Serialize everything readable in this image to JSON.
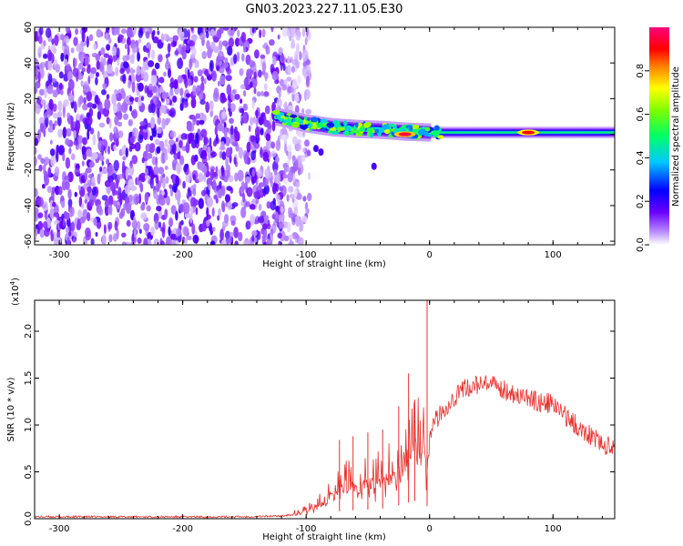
{
  "page_title": "GN03.2023.227.11.05.E30",
  "chart_data": [
    {
      "type": "heatmap",
      "title": "GN03.2023.227.11.05.E30",
      "xlabel": "Height of straight line (km)",
      "ylabel": "Frequency (Hz)",
      "xlim": [
        -320,
        150
      ],
      "ylim": [
        -62,
        60
      ],
      "x_ticks": [
        "-300",
        "-200",
        "-100",
        "0",
        "100"
      ],
      "y_ticks": [
        "60",
        "40",
        "20",
        "0",
        "-20",
        "-40",
        "-60"
      ],
      "colorbar": {
        "label": "Normalized spectral amplitude",
        "range": [
          0.0,
          1.0
        ],
        "ticks": [
          "0.0",
          "0.2",
          "0.4",
          "0.6",
          "0.8"
        ],
        "colors": [
          "#ffffff",
          "#7700ff",
          "#0000ff",
          "#00ffff",
          "#00ff00",
          "#ffff00",
          "#ff0000",
          "#ff00aa"
        ]
      },
      "features": {
        "noise_region_x": [
          -320,
          -103
        ],
        "signal_band_start_x": -125,
        "signal_band_center_hz": [
          [
            -125,
            10
          ],
          [
            -100,
            6
          ],
          [
            -80,
            4
          ],
          [
            -60,
            3
          ],
          [
            -40,
            2.5
          ],
          [
            -20,
            1.5
          ],
          [
            0,
            1
          ],
          [
            50,
            1
          ],
          [
            100,
            1
          ],
          [
            150,
            1
          ]
        ],
        "hotspots": [
          {
            "x": -20,
            "y": 0,
            "amplitude": 0.95
          },
          {
            "x": 80,
            "y": 1,
            "amplitude": 0.9
          }
        ]
      }
    },
    {
      "type": "line",
      "xlabel": "Height of straight line (km)",
      "ylabel": "SNR (10 * v/v)",
      "y_multiplier_label": "(x10",
      "y_multiplier_exp": "4",
      "xlim": [
        -320,
        150
      ],
      "ylim": [
        0,
        2.33
      ],
      "x_ticks": [
        "-300",
        "-200",
        "-100",
        "0",
        "100"
      ],
      "y_ticks": [
        "0.0",
        "0.5",
        "1.0",
        "1.5",
        "2.0"
      ],
      "series": [
        {
          "color": "#e8302a",
          "x": [
            -320,
            -250,
            -200,
            -150,
            -120,
            -105,
            -95,
            -85,
            -75,
            -70,
            -60,
            -50,
            -40,
            -30,
            -20,
            -10,
            -5,
            -2,
            0,
            5,
            10,
            20,
            30,
            40,
            50,
            60,
            70,
            80,
            90,
            100,
            110,
            120,
            130,
            140,
            150
          ],
          "y": [
            0.02,
            0.02,
            0.02,
            0.02,
            0.03,
            0.05,
            0.1,
            0.16,
            0.24,
            0.3,
            0.3,
            0.32,
            0.35,
            0.4,
            0.55,
            0.65,
            0.75,
            0.45,
            0.85,
            1.05,
            1.15,
            1.3,
            1.4,
            1.43,
            1.42,
            1.38,
            1.33,
            1.28,
            1.24,
            1.22,
            1.1,
            0.98,
            0.9,
            0.8,
            0.75
          ]
        }
      ],
      "spikes": [
        {
          "x": -73,
          "y": 0.84
        },
        {
          "x": -62,
          "y": 0.88
        },
        {
          "x": -50,
          "y": 0.92
        },
        {
          "x": -38,
          "y": 0.95
        },
        {
          "x": -25,
          "y": 1.2
        },
        {
          "x": -17,
          "y": 1.55
        },
        {
          "x": -12,
          "y": 1.25
        },
        {
          "x": -2,
          "y": 2.33
        }
      ]
    }
  ]
}
